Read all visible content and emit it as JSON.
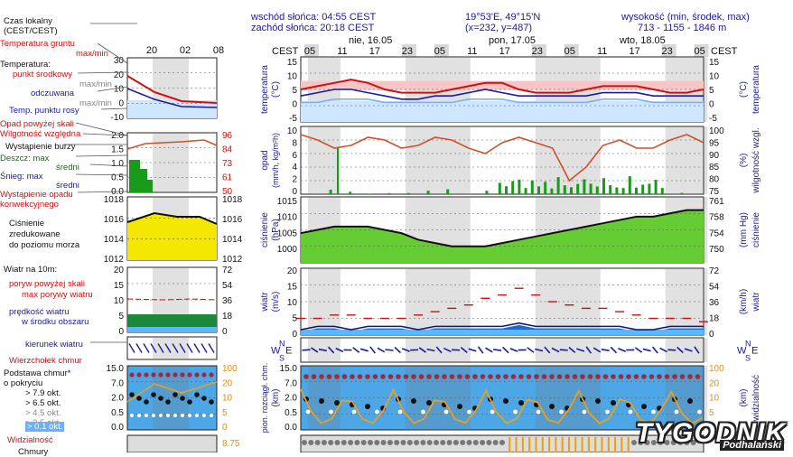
{
  "header": {
    "sunrise": "wschód słońca: 04:55 CEST",
    "sunset": "zachód słońca: 20:18 CEST",
    "coords": "19°53'E, 49°15'N",
    "grid": "(x=232, y=487)",
    "elev_label": "wysokość (min, środek, max)",
    "elev_values": "713 - 1155 - 1846 m",
    "tz_left": "CEST",
    "tz_right": "CEST",
    "days": [
      "nie, 16.05",
      "pon, 17.05",
      "wto, 18.05"
    ],
    "hours": [
      "05",
      "11",
      "17",
      "23",
      "05",
      "11",
      "17",
      "23",
      "05",
      "11",
      "17",
      "23",
      "05"
    ]
  },
  "legend_left": {
    "time_label": "Czas lokalny\n(CEST/CEST)",
    "small_hours": [
      "20",
      "02",
      "08"
    ],
    "temp": [
      "Temperatura gruntu",
      "max/min",
      "Temperatura:",
      "punkt środkowy",
      "max/min",
      "odczuwana",
      "max/min",
      "Temp. punktu rosy"
    ],
    "precip": [
      "Opad powyżej skali",
      "Wilgotność względna",
      "Wystąpienie burzy",
      "Deszcz: max",
      "średni",
      "Śnieg: max",
      "średni",
      "Wystąpienie opadu",
      "konwekcyjnego"
    ],
    "pressure": [
      "Ciśnienie",
      "zredukowane",
      "do poziomu morza"
    ],
    "wind": [
      "Wiatr na 10m:",
      "poryw powyżej skali",
      "max porywy wiatru",
      "prędkość wiatru",
      "w środku obszaru"
    ],
    "winddir": "kierunek wiatru",
    "clouds": [
      "Wierzchołek chmur",
      "Podstawa chmur*",
      "o pokryciu",
      "> 7.9 okt.",
      "> 6.5 okt.",
      "> 4.5 okt.",
      "> 2.5 okt.",
      "> 0.1 okt."
    ],
    "visibility": "Widzialność",
    "last": "Chmury"
  },
  "panels": {
    "temp": {
      "ylabel_l": "temperatura\n(°C)",
      "ylabel_r": "(°C)\ntemperatura",
      "ticks": [
        "15",
        "10",
        "5",
        "0",
        "-5"
      ],
      "small_ticks": [
        "30",
        "20",
        "10",
        "0",
        "-10"
      ]
    },
    "precip": {
      "ylabel_l": "opad\n(mm/h, kg/m²h)",
      "ylabel_r": "(%)\nwilgotność wzgl.",
      "ticks_l": [
        "10",
        "8",
        "6",
        "4",
        "2",
        "0"
      ],
      "ticks_r": [
        "100",
        "95",
        "90",
        "85",
        "80",
        "75"
      ],
      "small_ticks_l": [
        "2.0",
        "1.5",
        "1.0",
        "0.5",
        "0.0"
      ],
      "small_ticks_r": [
        "96",
        "84",
        "73",
        "61",
        "50"
      ]
    },
    "pressure": {
      "ylabel_l": "ciśnienie\n(hPa)",
      "ylabel_r": "(mm Hg)\nciśnienie",
      "ticks_l": [
        "1015",
        "1010",
        "1005",
        "1000"
      ],
      "ticks_r": [
        "761",
        "758",
        "754",
        "750"
      ],
      "small_ticks_l": [
        "1018",
        "1016",
        "1014",
        "1012"
      ],
      "small_ticks_r": [
        "1018",
        "1016",
        "1014",
        "1012"
      ]
    },
    "wind": {
      "ylabel_l": "wiatr\n(m/s)",
      "ylabel_r": "(km/h)\nwiatr",
      "ticks_l": [
        "20",
        "15",
        "10",
        "5",
        "0"
      ],
      "ticks_r": [
        "72",
        "54",
        "36",
        "18",
        "0"
      ]
    },
    "winddir": {
      "letters": [
        "W",
        "N",
        "S",
        "E"
      ]
    },
    "clouds": {
      "ylabel_l": "pion. rozciągł. chm.\n(km)",
      "ylabel_r": "(km)\nwidzialność",
      "ticks_l": [
        "15.0",
        "7.0",
        "2.0",
        "0.5",
        "0.0"
      ],
      "ticks_r": [
        "100",
        "20",
        "10",
        "5",
        "0"
      ],
      "small_ticks_r": [
        "100",
        "20",
        "10",
        "5",
        "0"
      ]
    },
    "last": {
      "ticks_r": [
        "8.75"
      ]
    }
  },
  "logo": {
    "text": "TYGODNIK",
    "sub": "Podhalański"
  },
  "chart_data": [
    {
      "type": "line",
      "name": "temperatura",
      "x": [
        "05",
        "08",
        "11",
        "14",
        "17",
        "20",
        "23",
        "02",
        "05",
        "08",
        "11",
        "14",
        "17",
        "20",
        "23",
        "02",
        "05",
        "08",
        "11",
        "14",
        "17",
        "20",
        "23",
        "02",
        "05"
      ],
      "series": [
        {
          "name": "punkt środkowy",
          "values": [
            5,
            6,
            7,
            8,
            7,
            5,
            4,
            4,
            4,
            5,
            6,
            7,
            7,
            5,
            4,
            4,
            4,
            5,
            6,
            6,
            6,
            5,
            4,
            4,
            5
          ]
        },
        {
          "name": "odczuwana",
          "values": [
            3,
            4,
            5,
            5,
            4,
            3,
            2,
            2,
            3,
            3,
            4,
            5,
            4,
            3,
            3,
            3,
            3,
            3,
            4,
            4,
            4,
            3,
            3,
            3,
            3
          ]
        },
        {
          "name": "Temp. punktu rosy",
          "values": [
            1,
            1,
            2,
            2,
            2,
            1,
            1,
            1,
            1,
            1,
            2,
            2,
            2,
            1,
            1,
            1,
            1,
            1,
            2,
            2,
            2,
            1,
            1,
            1,
            1
          ]
        }
      ],
      "ylim": [
        -5,
        15
      ]
    },
    {
      "type": "bar",
      "name": "opad",
      "ylim": [
        0,
        10
      ],
      "y2lim": [
        75,
        100
      ],
      "series": [
        {
          "name": "Wilgotność względna",
          "values": [
            97,
            95,
            92,
            93,
            96,
            95,
            92,
            93,
            96,
            95,
            92,
            90,
            94,
            96,
            94,
            92,
            80,
            85,
            93,
            95,
            92,
            92,
            95,
            97,
            94
          ]
        }
      ]
    },
    {
      "type": "area",
      "name": "ciśnienie",
      "ylim": [
        997,
        1017
      ],
      "series": [
        {
          "name": "Ciśnienie",
          "values": [
            1006,
            1007,
            1008,
            1008,
            1008,
            1007,
            1006,
            1004,
            1003,
            1002,
            1002,
            1002,
            1003,
            1004,
            1005,
            1006,
            1007,
            1008,
            1009,
            1010,
            1011,
            1011,
            1012,
            1013,
            1013
          ]
        }
      ]
    },
    {
      "type": "line",
      "name": "wiatr",
      "ylim": [
        0,
        20
      ],
      "series": [
        {
          "name": "max porywy wiatru",
          "values": [
            5,
            5,
            6,
            6,
            5,
            5,
            5,
            6,
            7,
            8,
            9,
            11,
            12,
            14,
            12,
            10,
            9,
            8,
            8,
            7,
            6,
            5,
            5,
            5,
            4
          ]
        },
        {
          "name": "prędkość wiatru",
          "values": [
            1,
            2,
            2,
            1,
            2,
            2,
            2,
            1,
            2,
            2,
            2,
            2,
            2,
            3,
            2,
            2,
            2,
            2,
            2,
            2,
            1,
            1,
            2,
            2,
            2
          ]
        }
      ]
    },
    {
      "type": "scatter",
      "name": "chmury",
      "ylim": [
        0,
        15
      ]
    }
  ]
}
